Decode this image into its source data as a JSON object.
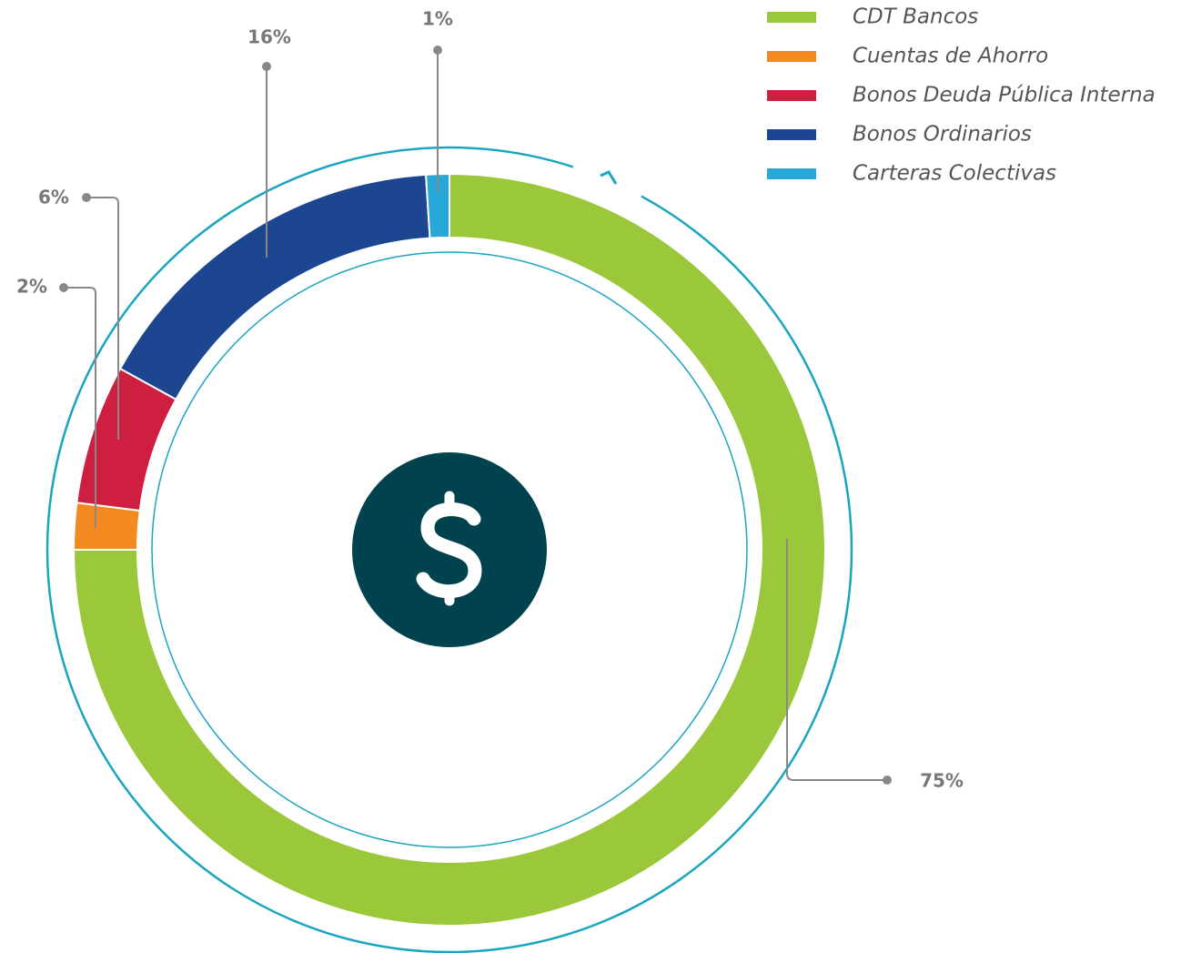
{
  "chart_data": {
    "type": "donut",
    "categories": [
      "CDT Bancos",
      "Cuentas de Ahorro",
      "Bonos Deuda Pública Interna",
      "Bonos Ordinarios",
      "Carteras Colectivas"
    ],
    "values": [
      75,
      2,
      6,
      16,
      1
    ],
    "value_labels": [
      "75%",
      "2%",
      "6%",
      "16%",
      "1%"
    ],
    "colors": [
      "#9bc83b",
      "#f28a21",
      "#cf1f41",
      "#1d4690",
      "#26a9d8"
    ],
    "legend": "top-right"
  }
}
